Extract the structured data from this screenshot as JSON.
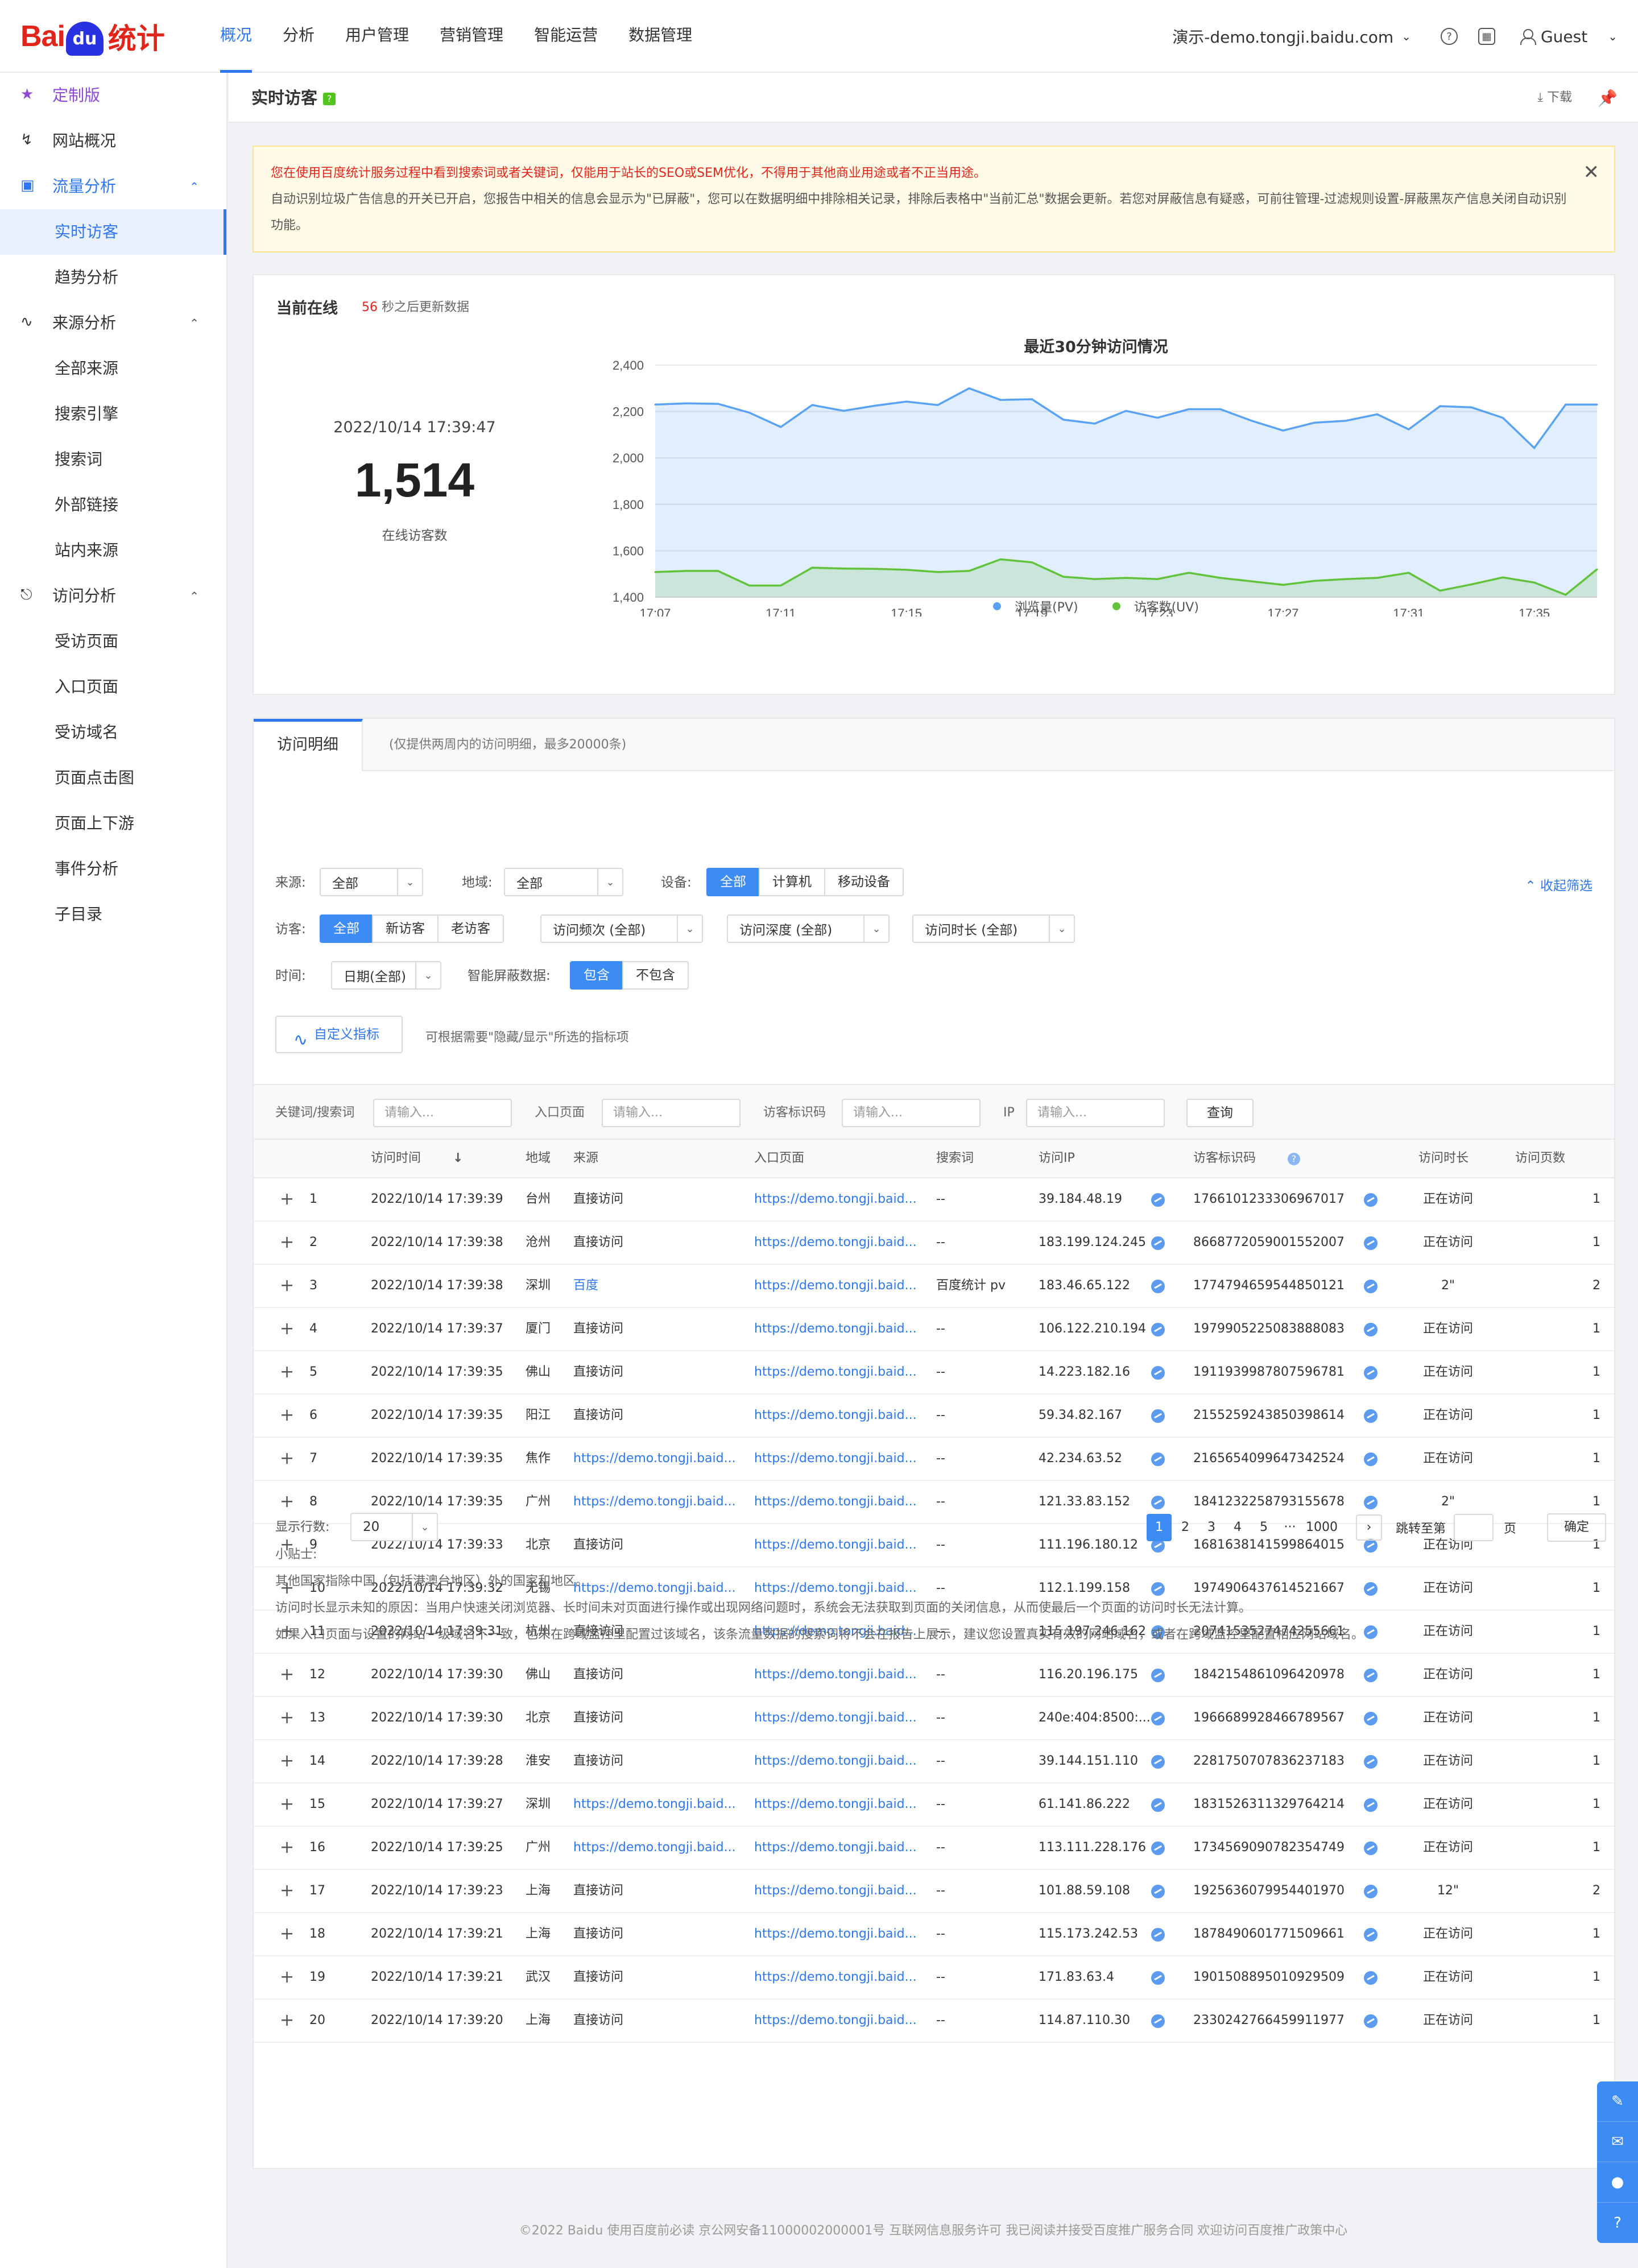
{
  "brand": {
    "bai": "Bai",
    "du": "du",
    "tongji": "统计"
  },
  "nav": [
    "概况",
    "分析",
    "用户管理",
    "营销管理",
    "智能运营",
    "数据管理"
  ],
  "top_right": {
    "site": "演示-demo.tongji.baidu.com",
    "user": "Guest"
  },
  "sidebar": {
    "custom": "定制版",
    "items": [
      {
        "label": "网站概况",
        "type": "top"
      },
      {
        "label": "流量分析",
        "type": "group"
      },
      {
        "label": "实时访客",
        "type": "sub"
      },
      {
        "label": "趋势分析",
        "type": "sub"
      },
      {
        "label": "来源分析",
        "type": "group"
      },
      {
        "label": "全部来源",
        "type": "sub"
      },
      {
        "label": "搜索引擎",
        "type": "sub"
      },
      {
        "label": "搜索词",
        "type": "sub"
      },
      {
        "label": "外部链接",
        "type": "sub"
      },
      {
        "label": "站内来源",
        "type": "sub"
      },
      {
        "label": "访问分析",
        "type": "group"
      },
      {
        "label": "受访页面",
        "type": "sub"
      },
      {
        "label": "入口页面",
        "type": "sub"
      },
      {
        "label": "受访域名",
        "type": "sub"
      },
      {
        "label": "页面点击图",
        "type": "sub"
      },
      {
        "label": "页面上下游",
        "type": "sub"
      },
      {
        "label": "事件分析",
        "type": "sub"
      },
      {
        "label": "子目录",
        "type": "sub"
      }
    ]
  },
  "page": {
    "title": "实时访客",
    "download": "下载"
  },
  "notice": {
    "warning": "您在使用百度统计服务过程中看到搜索词或者关键词，仅能用于站长的SEO或SEM优化，不得用于其他商业用途或者不正当用途。",
    "info": "自动识别垃圾广告信息的开关已开启，您报告中相关的信息会显示为\"已屏蔽\"，您可以在数据明细中排除相关记录，排除后表格中\"当前汇总\"数据会更新。若您对屏蔽信息有疑惑，可前往管理-过滤规则设置-屏蔽黑灰产信息关闭自动识别功能。"
  },
  "online": {
    "title": "当前在线",
    "countdown": "56",
    "countdown_suffix": "秒之后更新数据",
    "datetime": "2022/10/14 17:39:47",
    "count": "1,514",
    "count_label": "在线访客数"
  },
  "chart_data": {
    "type": "area",
    "title": "最近30分钟访问情况",
    "x": [
      "17:07",
      "17:08",
      "17:09",
      "17:10",
      "17:11",
      "17:12",
      "17:13",
      "17:14",
      "17:15",
      "17:16",
      "17:17",
      "17:18",
      "17:19",
      "17:20",
      "17:21",
      "17:22",
      "17:23",
      "17:24",
      "17:25",
      "17:26",
      "17:27",
      "17:28",
      "17:29",
      "17:30",
      "17:31",
      "17:32",
      "17:33",
      "17:34",
      "17:35",
      "17:36",
      "17:37"
    ],
    "x_ticks": [
      "17:07",
      "17:11",
      "17:15",
      "17:19",
      "17:23",
      "17:27",
      "17:31",
      "17:35"
    ],
    "ylim": [
      1400,
      2400
    ],
    "y_ticks": [
      1400,
      1600,
      1800,
      2000,
      2200,
      2400
    ],
    "series": [
      {
        "name": "浏览量(PV)",
        "color": "#5aa3f2",
        "values": [
          2230,
          2235,
          2233,
          2195,
          2133,
          2228,
          2203,
          2225,
          2243,
          2228,
          2300,
          2250,
          2253,
          2165,
          2148,
          2203,
          2173,
          2210,
          2210,
          2160,
          2118,
          2152,
          2160,
          2188,
          2123,
          2223,
          2218,
          2173,
          2043,
          2230,
          2230
        ]
      },
      {
        "name": "访客数(UV)",
        "color": "#62c23b",
        "values": [
          1508,
          1513,
          1513,
          1450,
          1450,
          1527,
          1523,
          1522,
          1518,
          1508,
          1513,
          1563,
          1550,
          1488,
          1478,
          1483,
          1478,
          1505,
          1483,
          1468,
          1453,
          1470,
          1478,
          1483,
          1505,
          1428,
          1455,
          1485,
          1463,
          1410,
          1520
        ]
      }
    ],
    "grid": true,
    "legend": "bottom-center"
  },
  "detail": {
    "tab": "访问明细",
    "tab_note": "(仅提供两周内的访问明细，最多20000条)",
    "filters": {
      "source_label": "来源:",
      "source_value": "全部",
      "region_label": "地域:",
      "region_value": "全部",
      "device_label": "设备:",
      "device_opts": [
        "全部",
        "计算机",
        "移动设备"
      ],
      "visitor_label": "访客:",
      "visitor_opts": [
        "全部",
        "新访客",
        "老访客"
      ],
      "freq": "访问频次 (全部)",
      "depth": "访问深度 (全部)",
      "duration": "访问时长 (全部)",
      "time_label": "时间:",
      "time_value": "日期(全部)",
      "shield_label": "智能屏蔽数据:",
      "shield_opts": [
        "包含",
        "不包含"
      ],
      "collapse": "收起筛选"
    },
    "custom_btn": "自定义指标",
    "custom_hint": "可根据需要\"隐藏/显示\"所选的指标项",
    "search": {
      "kw_label": "关键词/搜索词",
      "entry_label": "入口页面",
      "vid_label": "访客标识码",
      "ip_label": "IP",
      "placeholder": "请输入...",
      "query": "查询"
    },
    "columns": [
      "访问时间",
      "地域",
      "来源",
      "入口页面",
      "搜索词",
      "访问IP",
      "访客标识码",
      "访问时长",
      "访问页数"
    ],
    "rows": [
      {
        "n": "1",
        "time": "2022/10/14 17:39:39",
        "region": "台州",
        "source": "直接访问",
        "entry": "https://demo.tongji.baid...",
        "kw": "--",
        "ip": "39.184.48.19",
        "vid": "1766101233306967017",
        "dur": "正在访问",
        "pages": "1"
      },
      {
        "n": "2",
        "time": "2022/10/14 17:39:38",
        "region": "沧州",
        "source": "直接访问",
        "entry": "https://demo.tongji.baid...",
        "kw": "--",
        "ip": "183.199.124.245",
        "vid": "8668772059001552007",
        "dur": "正在访问",
        "pages": "1"
      },
      {
        "n": "3",
        "time": "2022/10/14 17:39:38",
        "region": "深圳",
        "source": "百度",
        "entry": "https://demo.tongji.baid...",
        "kw": "百度统计 pv",
        "ip": "183.46.65.122",
        "vid": "1774794659544850121",
        "dur": "2\"",
        "pages": "2"
      },
      {
        "n": "4",
        "time": "2022/10/14 17:39:37",
        "region": "厦门",
        "source": "直接访问",
        "entry": "https://demo.tongji.baid...",
        "kw": "--",
        "ip": "106.122.210.194",
        "vid": "1979905225083888083",
        "dur": "正在访问",
        "pages": "1"
      },
      {
        "n": "5",
        "time": "2022/10/14 17:39:35",
        "region": "佛山",
        "source": "直接访问",
        "entry": "https://demo.tongji.baid...",
        "kw": "--",
        "ip": "14.223.182.16",
        "vid": "1911939987807596781",
        "dur": "正在访问",
        "pages": "1"
      },
      {
        "n": "6",
        "time": "2022/10/14 17:39:35",
        "region": "阳江",
        "source": "直接访问",
        "entry": "https://demo.tongji.baid...",
        "kw": "--",
        "ip": "59.34.82.167",
        "vid": "2155259243850398614",
        "dur": "正在访问",
        "pages": "1"
      },
      {
        "n": "7",
        "time": "2022/10/14 17:39:35",
        "region": "焦作",
        "source": "https://demo.tongji.baid...",
        "entry": "https://demo.tongji.baid...",
        "kw": "--",
        "ip": "42.234.63.52",
        "vid": "2165654099647342524",
        "dur": "正在访问",
        "pages": "1"
      },
      {
        "n": "8",
        "time": "2022/10/14 17:39:35",
        "region": "广州",
        "source": "https://demo.tongji.baid...",
        "entry": "https://demo.tongji.baid...",
        "kw": "--",
        "ip": "121.33.83.152",
        "vid": "1841232258793155678",
        "dur": "2\"",
        "pages": "1"
      },
      {
        "n": "9",
        "time": "2022/10/14 17:39:33",
        "region": "北京",
        "source": "直接访问",
        "entry": "https://demo.tongji.baid...",
        "kw": "--",
        "ip": "111.196.180.12",
        "vid": "1681638141599864015",
        "dur": "正在访问",
        "pages": "1"
      },
      {
        "n": "10",
        "time": "2022/10/14 17:39:32",
        "region": "无锡",
        "source": "https://demo.tongji.baid...",
        "entry": "https://demo.tongji.baid...",
        "kw": "--",
        "ip": "112.1.199.158",
        "vid": "1974906437614521667",
        "dur": "正在访问",
        "pages": "1"
      },
      {
        "n": "11",
        "time": "2022/10/14 17:39:31",
        "region": "杭州",
        "source": "直接访问",
        "entry": "https://demo.tongji.baid...",
        "kw": "--",
        "ip": "115.197.246.162",
        "vid": "2074153527474255661",
        "dur": "正在访问",
        "pages": "1"
      },
      {
        "n": "12",
        "time": "2022/10/14 17:39:30",
        "region": "佛山",
        "source": "直接访问",
        "entry": "https://demo.tongji.baid...",
        "kw": "--",
        "ip": "116.20.196.175",
        "vid": "1842154861096420978",
        "dur": "正在访问",
        "pages": "1"
      },
      {
        "n": "13",
        "time": "2022/10/14 17:39:30",
        "region": "北京",
        "source": "直接访问",
        "entry": "https://demo.tongji.baid...",
        "kw": "--",
        "ip": "240e:404:8500:...",
        "vid": "1966689928466789567",
        "dur": "正在访问",
        "pages": "1"
      },
      {
        "n": "14",
        "time": "2022/10/14 17:39:28",
        "region": "淮安",
        "source": "直接访问",
        "entry": "https://demo.tongji.baid...",
        "kw": "--",
        "ip": "39.144.151.110",
        "vid": "2281750707836237183",
        "dur": "正在访问",
        "pages": "1"
      },
      {
        "n": "15",
        "time": "2022/10/14 17:39:27",
        "region": "深圳",
        "source": "https://demo.tongji.baid...",
        "entry": "https://demo.tongji.baid...",
        "kw": "--",
        "ip": "61.141.86.222",
        "vid": "1831526311329764214",
        "dur": "正在访问",
        "pages": "1"
      },
      {
        "n": "16",
        "time": "2022/10/14 17:39:25",
        "region": "广州",
        "source": "https://demo.tongji.baid...",
        "entry": "https://demo.tongji.baid...",
        "kw": "--",
        "ip": "113.111.228.176",
        "vid": "1734569090782354749",
        "dur": "正在访问",
        "pages": "1"
      },
      {
        "n": "17",
        "time": "2022/10/14 17:39:23",
        "region": "上海",
        "source": "直接访问",
        "entry": "https://demo.tongji.baid...",
        "kw": "--",
        "ip": "101.88.59.108",
        "vid": "1925636079954401970",
        "dur": "12\"",
        "pages": "2"
      },
      {
        "n": "18",
        "time": "2022/10/14 17:39:21",
        "region": "上海",
        "source": "直接访问",
        "entry": "https://demo.tongji.baid...",
        "kw": "--",
        "ip": "115.173.242.53",
        "vid": "1878490601771509661",
        "dur": "正在访问",
        "pages": "1"
      },
      {
        "n": "19",
        "time": "2022/10/14 17:39:21",
        "region": "武汉",
        "source": "直接访问",
        "entry": "https://demo.tongji.baid...",
        "kw": "--",
        "ip": "171.83.63.4",
        "vid": "1901508895010929509",
        "dur": "正在访问",
        "pages": "1"
      },
      {
        "n": "20",
        "time": "2022/10/14 17:39:20",
        "region": "上海",
        "source": "直接访问",
        "entry": "https://demo.tongji.baid...",
        "kw": "--",
        "ip": "114.87.110.30",
        "vid": "2330242766459911977",
        "dur": "正在访问",
        "pages": "1"
      }
    ],
    "pager": {
      "rows_label": "显示行数:",
      "rows_value": "20",
      "pages": [
        "1",
        "2",
        "3",
        "4",
        "5",
        "···",
        "1000"
      ],
      "current": "1",
      "jump_label": "跳转至第",
      "jump_suffix": "页",
      "ok": "确定"
    },
    "tips": {
      "title": "小贴士:",
      "lines": [
        "其他国家指除中国（包括港澳台地区）外的国家和地区。",
        "访问时长显示未知的原因：当用户快速关闭浏览器、长时间未对页面进行操作或出现网络问题时，系统会无法获取到页面的关闭信息，从而使最后一个页面的访问时长无法计算。",
        "如果入口页面与设置的网站一级域名不一致，也未在跨域监控里配置过该域名，该条流量数据的搜索词将不会在报告上展示，建议您设置真实有效的网站域名，或者在跨域监控里配置相应网站域名。"
      ]
    }
  },
  "footer": "©2022 Baidu 使用百度前必读 京公网安备11000002000001号 互联网信息服务许可 我已阅读并接受百度推广服务合同 欢迎访问百度推广政策中心",
  "float_icons": [
    "feedback-icon",
    "mail-icon",
    "wechat-icon",
    "help-icon"
  ]
}
